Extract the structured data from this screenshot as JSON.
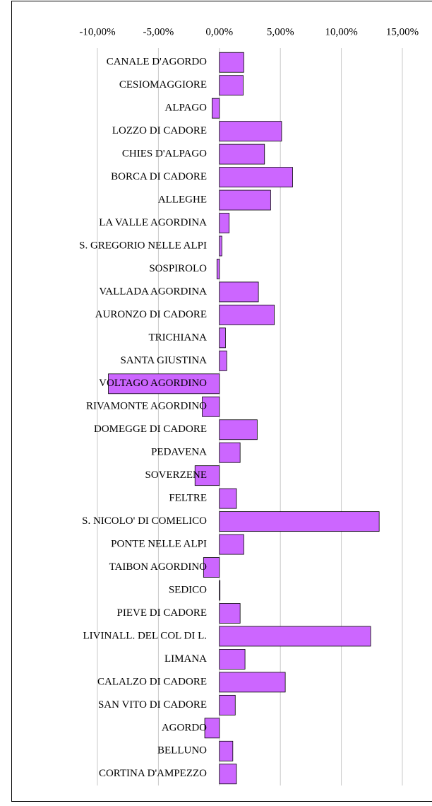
{
  "chart_data": {
    "type": "barh",
    "categories": [
      "CANALE D'AGORDO",
      "CESIOMAGGIORE",
      "ALPAGO",
      "LOZZO DI CADORE",
      "CHIES D'ALPAGO",
      "BORCA DI CADORE",
      "ALLEGHE",
      "LA VALLE AGORDINA",
      "S. GREGORIO NELLE ALPI",
      "SOSPIROLO",
      "VALLADA AGORDINA",
      "AURONZO DI CADORE",
      "TRICHIANA",
      "SANTA GIUSTINA",
      "VOLTAGO AGORDINO",
      "RIVAMONTE AGORDINO",
      "DOMEGGE DI CADORE",
      "PEDAVENA",
      "SOVERZENE",
      "FELTRE",
      "S. NICOLO' DI COMELICO",
      "PONTE NELLE ALPI",
      "TAIBON AGORDINO",
      "SEDICO",
      "PIEVE DI CADORE",
      "LIVINALL. DEL COL DI L.",
      "LIMANA",
      "CALALZO DI CADORE",
      "SAN VITO DI CADORE",
      "AGORDO",
      "BELLUNO",
      "CORTINA D'AMPEZZO"
    ],
    "values": [
      2.0,
      1.95,
      -0.6,
      5.1,
      3.7,
      6.0,
      4.2,
      0.8,
      0.2,
      -0.2,
      3.2,
      4.5,
      0.5,
      0.6,
      -9.1,
      -1.4,
      3.1,
      1.7,
      -2.0,
      1.4,
      13.1,
      2.0,
      -1.3,
      0.05,
      1.7,
      12.4,
      2.1,
      5.4,
      1.3,
      -1.2,
      1.1,
      1.4
    ],
    "color": "#cc66ff",
    "xlim": [
      -10,
      15
    ],
    "xticks": [
      {
        "value": -10,
        "label": "-10,00%"
      },
      {
        "value": -5,
        "label": "-5,00%"
      },
      {
        "value": 0,
        "label": "0,00%"
      },
      {
        "value": 5,
        "label": "5,00%"
      },
      {
        "value": 10,
        "label": "10,00%"
      },
      {
        "value": 15,
        "label": "15,00%"
      }
    ],
    "grid": true
  }
}
